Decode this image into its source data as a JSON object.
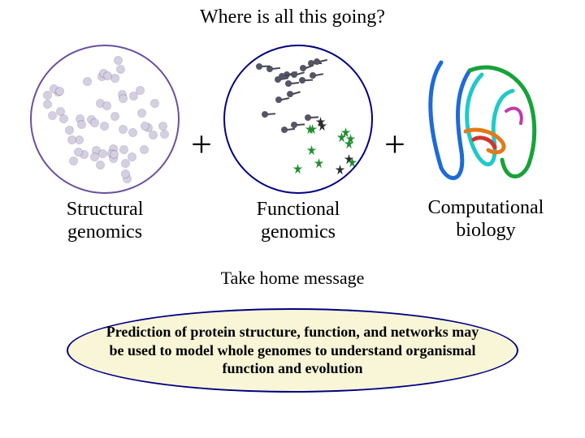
{
  "title": "Where is all this going?",
  "plus": "+",
  "panels": {
    "structural": {
      "label": "Structural\ngenomics",
      "circle_border_color": "#6a4fa0",
      "dot_color": "#d6cfe2",
      "dot_count": 56
    },
    "functional": {
      "label": "Functional\ngenomics",
      "circle_border_color": "#000080",
      "small_dot_color": "#555566",
      "line_color": "#445",
      "burst_colors": {
        "green": "#1f8d2f",
        "dark": "#2b2b2b"
      }
    },
    "computational": {
      "label": "Computational\nbiology",
      "ribbon_colors": {
        "blue": "#1e6bd6",
        "green": "#17a23a",
        "cyan": "#1fc9c9",
        "orange": "#e27a1a",
        "red": "#d0352c",
        "magenta": "#c23aa8"
      }
    }
  },
  "subtitle": "Take home message",
  "message": {
    "text": "Prediction of protein structure, function, and networks may be used to model whole genomes to understand organismal function and evolution",
    "background_color": "#f8f6d7",
    "border_color": "#000080"
  },
  "background_color": "#ffffff"
}
